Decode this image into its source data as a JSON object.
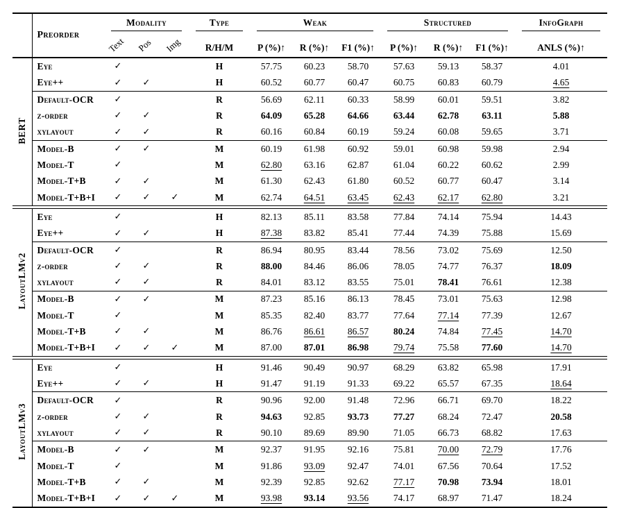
{
  "colors": {
    "background": "#ffffff",
    "text": "#000000",
    "rule": "#000000"
  },
  "table": {
    "checkmark": "✓",
    "header": {
      "preorder": "Preorder",
      "modality": {
        "label": "Modality",
        "cols": [
          "Text",
          "Pos",
          "Img"
        ]
      },
      "type": {
        "label": "Type",
        "col": "R/H/M"
      },
      "weak": {
        "label": "Weak",
        "cols": [
          "P (%)↑",
          "R (%)↑",
          "F1 (%)↑"
        ]
      },
      "structured": {
        "label": "Structured",
        "cols": [
          "P (%)↑",
          "R (%)↑",
          "F1 (%)↑"
        ]
      },
      "infograph": {
        "label": "InfoGraph",
        "col": "ANLS (%)↑"
      }
    },
    "groups": [
      {
        "name": "BERT",
        "blocks": [
          {
            "rows": [
              {
                "label": "Eye",
                "checks": [
                  1,
                  0,
                  0
                ],
                "type": "H",
                "vals": [
                  "57.75",
                  "60.23",
                  "58.70",
                  "57.63",
                  "59.13",
                  "58.37",
                  "4.01"
                ],
                "fmt": [
                  "n",
                  "n",
                  "n",
                  "n",
                  "n",
                  "n",
                  "n"
                ]
              },
              {
                "label": "Eye++",
                "checks": [
                  1,
                  1,
                  0
                ],
                "type": "H",
                "vals": [
                  "60.52",
                  "60.77",
                  "60.47",
                  "60.75",
                  "60.83",
                  "60.79",
                  "4.65"
                ],
                "fmt": [
                  "n",
                  "n",
                  "n",
                  "n",
                  "n",
                  "n",
                  "u"
                ]
              }
            ]
          },
          {
            "rows": [
              {
                "label": "Default-OCR",
                "checks": [
                  1,
                  0,
                  0
                ],
                "type": "R",
                "vals": [
                  "56.69",
                  "62.11",
                  "60.33",
                  "58.99",
                  "60.01",
                  "59.51",
                  "3.82"
                ],
                "fmt": [
                  "n",
                  "n",
                  "n",
                  "n",
                  "n",
                  "n",
                  "n"
                ]
              },
              {
                "label": "z-order",
                "checks": [
                  1,
                  1,
                  0
                ],
                "type": "R",
                "vals": [
                  "64.09",
                  "65.28",
                  "64.66",
                  "63.44",
                  "62.78",
                  "63.11",
                  "5.88"
                ],
                "fmt": [
                  "b",
                  "b",
                  "b",
                  "b",
                  "b",
                  "b",
                  "b"
                ]
              },
              {
                "label": "xylayout",
                "checks": [
                  1,
                  1,
                  0
                ],
                "type": "R",
                "vals": [
                  "60.16",
                  "60.84",
                  "60.19",
                  "59.24",
                  "60.08",
                  "59.65",
                  "3.71"
                ],
                "fmt": [
                  "n",
                  "n",
                  "n",
                  "n",
                  "n",
                  "n",
                  "n"
                ]
              }
            ]
          },
          {
            "rows": [
              {
                "label": "Model-B",
                "checks": [
                  1,
                  1,
                  0
                ],
                "type": "M",
                "vals": [
                  "60.19",
                  "61.98",
                  "60.92",
                  "59.01",
                  "60.98",
                  "59.98",
                  "2.94"
                ],
                "fmt": [
                  "n",
                  "n",
                  "n",
                  "n",
                  "n",
                  "n",
                  "n"
                ]
              },
              {
                "label": "Model-T",
                "checks": [
                  1,
                  0,
                  0
                ],
                "type": "M",
                "vals": [
                  "62.80",
                  "63.16",
                  "62.87",
                  "61.04",
                  "60.22",
                  "60.62",
                  "2.99"
                ],
                "fmt": [
                  "u",
                  "n",
                  "n",
                  "n",
                  "n",
                  "n",
                  "n"
                ]
              },
              {
                "label": "Model-T+B",
                "checks": [
                  1,
                  1,
                  0
                ],
                "type": "M",
                "vals": [
                  "61.30",
                  "62.43",
                  "61.80",
                  "60.52",
                  "60.77",
                  "60.47",
                  "3.14"
                ],
                "fmt": [
                  "n",
                  "n",
                  "n",
                  "n",
                  "n",
                  "n",
                  "n"
                ]
              },
              {
                "label": "Model-T+B+I",
                "checks": [
                  1,
                  1,
                  1
                ],
                "type": "M",
                "vals": [
                  "62.74",
                  "64.51",
                  "63.45",
                  "62.43",
                  "62.17",
                  "62.80",
                  "3.21"
                ],
                "fmt": [
                  "n",
                  "u",
                  "u",
                  "u",
                  "u",
                  "u",
                  "n"
                ]
              }
            ]
          }
        ]
      },
      {
        "name": "LayoutLMv2",
        "blocks": [
          {
            "rows": [
              {
                "label": "Eye",
                "checks": [
                  1,
                  0,
                  0
                ],
                "type": "H",
                "vals": [
                  "82.13",
                  "85.11",
                  "83.58",
                  "77.84",
                  "74.14",
                  "75.94",
                  "14.43"
                ],
                "fmt": [
                  "n",
                  "n",
                  "n",
                  "n",
                  "n",
                  "n",
                  "n"
                ]
              },
              {
                "label": "Eye++",
                "checks": [
                  1,
                  1,
                  0
                ],
                "type": "H",
                "vals": [
                  "87.38",
                  "83.82",
                  "85.41",
                  "77.44",
                  "74.39",
                  "75.88",
                  "15.69"
                ],
                "fmt": [
                  "u",
                  "n",
                  "n",
                  "n",
                  "n",
                  "n",
                  "n"
                ]
              }
            ]
          },
          {
            "rows": [
              {
                "label": "Default-OCR",
                "checks": [
                  1,
                  0,
                  0
                ],
                "type": "R",
                "vals": [
                  "86.94",
                  "80.95",
                  "83.44",
                  "78.56",
                  "73.02",
                  "75.69",
                  "12.50"
                ],
                "fmt": [
                  "n",
                  "n",
                  "n",
                  "n",
                  "n",
                  "n",
                  "n"
                ]
              },
              {
                "label": "z-order",
                "checks": [
                  1,
                  1,
                  0
                ],
                "type": "R",
                "vals": [
                  "88.00",
                  "84.46",
                  "86.06",
                  "78.05",
                  "74.77",
                  "76.37",
                  "18.09"
                ],
                "fmt": [
                  "b",
                  "n",
                  "n",
                  "n",
                  "n",
                  "n",
                  "b"
                ]
              },
              {
                "label": "xylayout",
                "checks": [
                  1,
                  1,
                  0
                ],
                "type": "R",
                "vals": [
                  "84.01",
                  "83.12",
                  "83.55",
                  "75.01",
                  "78.41",
                  "76.61",
                  "12.38"
                ],
                "fmt": [
                  "n",
                  "n",
                  "n",
                  "n",
                  "b",
                  "n",
                  "n"
                ]
              }
            ]
          },
          {
            "rows": [
              {
                "label": "Model-B",
                "checks": [
                  1,
                  1,
                  0
                ],
                "type": "M",
                "vals": [
                  "87.23",
                  "85.16",
                  "86.13",
                  "78.45",
                  "73.01",
                  "75.63",
                  "12.98"
                ],
                "fmt": [
                  "n",
                  "n",
                  "n",
                  "n",
                  "n",
                  "n",
                  "n"
                ]
              },
              {
                "label": "Model-T",
                "checks": [
                  1,
                  0,
                  0
                ],
                "type": "M",
                "vals": [
                  "85.35",
                  "82.40",
                  "83.77",
                  "77.64",
                  "77.14",
                  "77.39",
                  "12.67"
                ],
                "fmt": [
                  "n",
                  "n",
                  "n",
                  "n",
                  "u",
                  "n",
                  "n"
                ]
              },
              {
                "label": "Model-T+B",
                "checks": [
                  1,
                  1,
                  0
                ],
                "type": "M",
                "vals": [
                  "86.76",
                  "86.61",
                  "86.57",
                  "80.24",
                  "74.84",
                  "77.45",
                  "14.70"
                ],
                "fmt": [
                  "n",
                  "u",
                  "u",
                  "b",
                  "n",
                  "u",
                  "u"
                ]
              },
              {
                "label": "Model-T+B+I",
                "checks": [
                  1,
                  1,
                  1
                ],
                "type": "M",
                "vals": [
                  "87.00",
                  "87.01",
                  "86.98",
                  "79.74",
                  "75.58",
                  "77.60",
                  "14.70"
                ],
                "fmt": [
                  "n",
                  "b",
                  "b",
                  "u",
                  "n",
                  "b",
                  "u"
                ]
              }
            ]
          }
        ]
      },
      {
        "name": "LayoutLMv3",
        "blocks": [
          {
            "rows": [
              {
                "label": "Eye",
                "checks": [
                  1,
                  0,
                  0
                ],
                "type": "H",
                "vals": [
                  "91.46",
                  "90.49",
                  "90.97",
                  "68.29",
                  "63.82",
                  "65.98",
                  "17.91"
                ],
                "fmt": [
                  "n",
                  "n",
                  "n",
                  "n",
                  "n",
                  "n",
                  "n"
                ]
              },
              {
                "label": "Eye++",
                "checks": [
                  1,
                  1,
                  0
                ],
                "type": "H",
                "vals": [
                  "91.47",
                  "91.19",
                  "91.33",
                  "69.22",
                  "65.57",
                  "67.35",
                  "18.64"
                ],
                "fmt": [
                  "n",
                  "n",
                  "n",
                  "n",
                  "n",
                  "n",
                  "u"
                ]
              }
            ]
          },
          {
            "rows": [
              {
                "label": "Default-OCR",
                "checks": [
                  1,
                  0,
                  0
                ],
                "type": "R",
                "vals": [
                  "90.96",
                  "92.00",
                  "91.48",
                  "72.96",
                  "66.71",
                  "69.70",
                  "18.22"
                ],
                "fmt": [
                  "n",
                  "n",
                  "n",
                  "n",
                  "n",
                  "n",
                  "n"
                ]
              },
              {
                "label": "z-order",
                "checks": [
                  1,
                  1,
                  0
                ],
                "type": "R",
                "vals": [
                  "94.63",
                  "92.85",
                  "93.73",
                  "77.27",
                  "68.24",
                  "72.47",
                  "20.58"
                ],
                "fmt": [
                  "b",
                  "n",
                  "b",
                  "b",
                  "n",
                  "n",
                  "b"
                ]
              },
              {
                "label": "xylayout",
                "checks": [
                  1,
                  1,
                  0
                ],
                "type": "R",
                "vals": [
                  "90.10",
                  "89.69",
                  "89.90",
                  "71.05",
                  "66.73",
                  "68.82",
                  "17.63"
                ],
                "fmt": [
                  "n",
                  "n",
                  "n",
                  "n",
                  "n",
                  "n",
                  "n"
                ]
              }
            ]
          },
          {
            "rows": [
              {
                "label": "Model-B",
                "checks": [
                  1,
                  1,
                  0
                ],
                "type": "M",
                "vals": [
                  "92.37",
                  "91.95",
                  "92.16",
                  "75.81",
                  "70.00",
                  "72.79",
                  "17.76"
                ],
                "fmt": [
                  "n",
                  "n",
                  "n",
                  "n",
                  "u",
                  "u",
                  "n"
                ]
              },
              {
                "label": "Model-T",
                "checks": [
                  1,
                  0,
                  0
                ],
                "type": "M",
                "vals": [
                  "91.86",
                  "93.09",
                  "92.47",
                  "74.01",
                  "67.56",
                  "70.64",
                  "17.52"
                ],
                "fmt": [
                  "n",
                  "u",
                  "n",
                  "n",
                  "n",
                  "n",
                  "n"
                ]
              },
              {
                "label": "Model-T+B",
                "checks": [
                  1,
                  1,
                  0
                ],
                "type": "M",
                "vals": [
                  "92.39",
                  "92.85",
                  "92.62",
                  "77.17",
                  "70.98",
                  "73.94",
                  "18.01"
                ],
                "fmt": [
                  "n",
                  "n",
                  "n",
                  "u",
                  "b",
                  "b",
                  "n"
                ]
              },
              {
                "label": "Model-T+B+I",
                "checks": [
                  1,
                  1,
                  1
                ],
                "type": "M",
                "vals": [
                  "93.98",
                  "93.14",
                  "93.56",
                  "74.17",
                  "68.97",
                  "71.47",
                  "18.24"
                ],
                "fmt": [
                  "u",
                  "b",
                  "u",
                  "n",
                  "n",
                  "n",
                  "n"
                ]
              }
            ]
          }
        ]
      }
    ]
  }
}
